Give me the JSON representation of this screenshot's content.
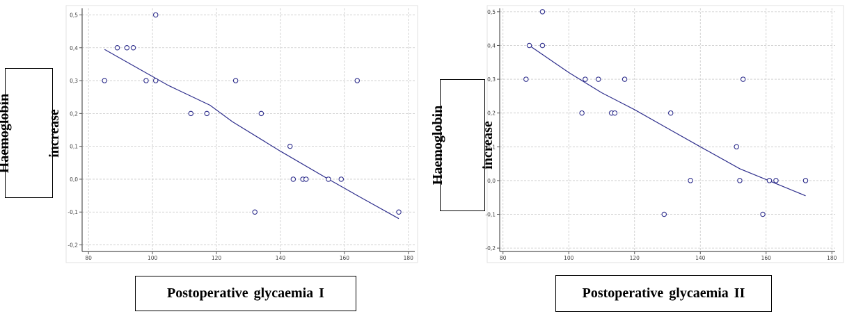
{
  "colors": {
    "series": "#2e2e8c",
    "grid": "#c8c8c8",
    "axis": "#555555"
  },
  "chart_data": [
    {
      "type": "scatter",
      "title": "",
      "xlabel": "Postoperative glycaemia I",
      "ylabel_lines": [
        "Haemoglobin",
        "increase"
      ],
      "xlim": [
        78,
        182
      ],
      "ylim": [
        -0.22,
        0.52
      ],
      "xticks": [
        80,
        100,
        120,
        140,
        160,
        180
      ],
      "xtick_labels": [
        "80",
        "100",
        "120",
        "140",
        "160",
        "180"
      ],
      "yticks": [
        -0.2,
        -0.1,
        0.0,
        0.1,
        0.2,
        0.3,
        0.4,
        0.5
      ],
      "ytick_labels": [
        "-0,2",
        "-0,1",
        "0,0",
        "0,1",
        "0,2",
        "0,3",
        "0,4",
        "0,5"
      ],
      "grid": true,
      "points": [
        {
          "x": 85,
          "y": 0.3
        },
        {
          "x": 89,
          "y": 0.4
        },
        {
          "x": 92,
          "y": 0.4
        },
        {
          "x": 94,
          "y": 0.4
        },
        {
          "x": 98,
          "y": 0.3
        },
        {
          "x": 101,
          "y": 0.5
        },
        {
          "x": 101,
          "y": 0.3
        },
        {
          "x": 112,
          "y": 0.2
        },
        {
          "x": 117,
          "y": 0.2
        },
        {
          "x": 126,
          "y": 0.3
        },
        {
          "x": 132,
          "y": -0.1
        },
        {
          "x": 134,
          "y": 0.2
        },
        {
          "x": 143,
          "y": 0.1
        },
        {
          "x": 144,
          "y": 0.0
        },
        {
          "x": 147,
          "y": 0.0
        },
        {
          "x": 148,
          "y": 0.0
        },
        {
          "x": 155,
          "y": 0.0
        },
        {
          "x": 159,
          "y": 0.0
        },
        {
          "x": 164,
          "y": 0.3
        },
        {
          "x": 177,
          "y": -0.1
        }
      ],
      "trend_line": [
        {
          "x": 85,
          "y": 0.395
        },
        {
          "x": 95,
          "y": 0.34
        },
        {
          "x": 105,
          "y": 0.285
        },
        {
          "x": 118,
          "y": 0.225
        },
        {
          "x": 125,
          "y": 0.175
        },
        {
          "x": 140,
          "y": 0.085
        },
        {
          "x": 155,
          "y": 0.0
        },
        {
          "x": 165,
          "y": -0.055
        },
        {
          "x": 177,
          "y": -0.12
        }
      ]
    },
    {
      "type": "scatter",
      "title": "",
      "xlabel": "Postoperative glycaemia II",
      "ylabel_lines": [
        "Haemoglobin",
        "increase"
      ],
      "xlim": [
        79,
        181
      ],
      "ylim": [
        -0.21,
        0.51
      ],
      "xticks": [
        80,
        100,
        120,
        140,
        160,
        180
      ],
      "xtick_labels": [
        "80",
        "100",
        "120",
        "140",
        "160",
        "180"
      ],
      "yticks": [
        -0.2,
        -0.1,
        0.0,
        0.1,
        0.2,
        0.3,
        0.4,
        0.5
      ],
      "ytick_labels": [
        "-0,2",
        "-0,1",
        "0,0",
        "0,1",
        "0,2",
        "0,3",
        "0,4",
        "0,5"
      ],
      "grid": true,
      "points": [
        {
          "x": 87,
          "y": 0.3
        },
        {
          "x": 88,
          "y": 0.4
        },
        {
          "x": 92,
          "y": 0.5
        },
        {
          "x": 92,
          "y": 0.4
        },
        {
          "x": 104,
          "y": 0.2
        },
        {
          "x": 105,
          "y": 0.3
        },
        {
          "x": 109,
          "y": 0.3
        },
        {
          "x": 113,
          "y": 0.2
        },
        {
          "x": 114,
          "y": 0.2
        },
        {
          "x": 117,
          "y": 0.3
        },
        {
          "x": 129,
          "y": -0.1
        },
        {
          "x": 131,
          "y": 0.2
        },
        {
          "x": 137,
          "y": 0.0
        },
        {
          "x": 151,
          "y": 0.1
        },
        {
          "x": 152,
          "y": 0.0
        },
        {
          "x": 153,
          "y": 0.3
        },
        {
          "x": 159,
          "y": -0.1
        },
        {
          "x": 161,
          "y": 0.0
        },
        {
          "x": 163,
          "y": 0.0
        },
        {
          "x": 172,
          "y": 0.0
        }
      ],
      "trend_line": [
        {
          "x": 88,
          "y": 0.4
        },
        {
          "x": 100,
          "y": 0.32
        },
        {
          "x": 110,
          "y": 0.26
        },
        {
          "x": 120,
          "y": 0.21
        },
        {
          "x": 130,
          "y": 0.155
        },
        {
          "x": 140,
          "y": 0.1
        },
        {
          "x": 152,
          "y": 0.035
        },
        {
          "x": 162,
          "y": -0.005
        },
        {
          "x": 172,
          "y": -0.045
        }
      ]
    }
  ]
}
